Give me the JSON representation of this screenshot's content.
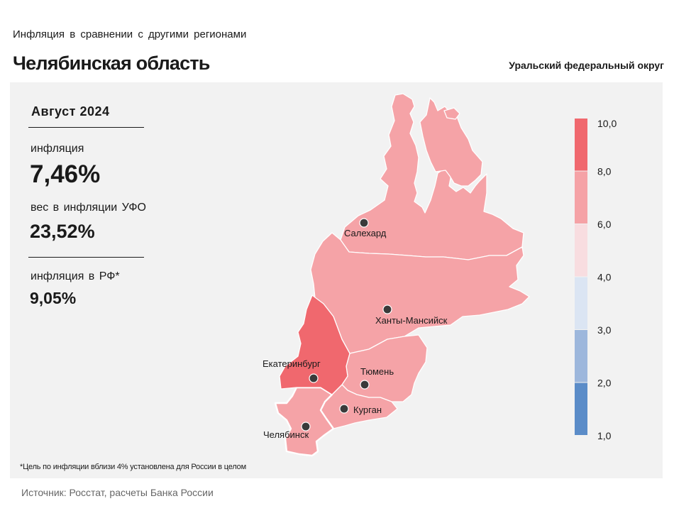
{
  "header": {
    "subtitle": "Инфляция в сравнении с другими регионами",
    "title": "Челябинская область",
    "region_group": "Уральский федеральный округ"
  },
  "stats": {
    "period": "Август 2024",
    "inflation_label": "инфляция",
    "inflation_value": "7,46%",
    "weight_label": "вес в инфляции УФО",
    "weight_value": "23,52%",
    "rf_label": "инфляция в РФ*",
    "rf_value": "9,05%"
  },
  "legend": {
    "ticks": [
      "10,0",
      "8,0",
      "6,0",
      "4,0",
      "3,0",
      "2,0",
      "1,0"
    ],
    "colors": [
      "#f0686e",
      "#f5a2a6",
      "#f8dde0",
      "#dbe5f3",
      "#9db7dc",
      "#5b8cc8"
    ]
  },
  "map": {
    "colors": {
      "band_6_8": "#f5a3a7",
      "band_8_10": "#f0686e",
      "outline": "#ffffff",
      "city_dot": "#3a3a3a"
    },
    "regions": [
      {
        "id": "yamalo-nenets",
        "band": "6,0–8,0"
      },
      {
        "id": "khanty-mansi",
        "band": "6,0–8,0"
      },
      {
        "id": "sverdlovsk",
        "band": "8,0–10,0"
      },
      {
        "id": "tyumen",
        "band": "6,0–8,0"
      },
      {
        "id": "kurgan",
        "band": "6,0–8,0"
      },
      {
        "id": "chelyabinsk",
        "band": "6,0–8,0",
        "highlighted": true
      }
    ],
    "cities": [
      "Салехард",
      "Ханты-Мансийск",
      "Екатеринбург",
      "Тюмень",
      "Курган",
      "Челябинск"
    ]
  },
  "footnote": "*Цель по инфляции вблизи 4% установлена для России в целом",
  "source": "Источник: Росстат, расчеты Банка России"
}
